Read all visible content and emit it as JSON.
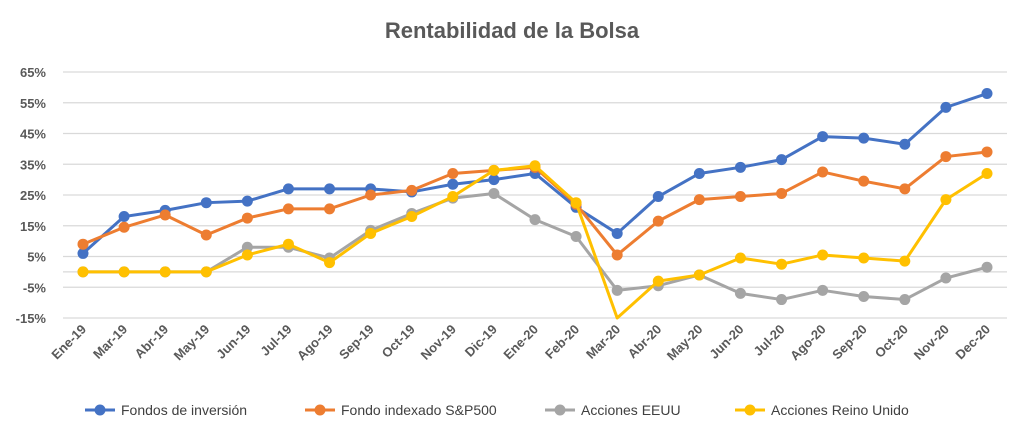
{
  "chart_data": {
    "type": "line",
    "title": "Rentabilidad de la Bolsa",
    "xlabel": "",
    "ylabel": "",
    "ylim": [
      -15,
      65
    ],
    "yticks": [
      65,
      55,
      45,
      35,
      25,
      15,
      5,
      -5,
      -15
    ],
    "ytick_labels": [
      "65%",
      "55%",
      "45%",
      "35%",
      "25%",
      "15%",
      "5%",
      "-5%",
      "-15%"
    ],
    "grid": true,
    "legend_position": "bottom",
    "categories": [
      "Ene-19",
      "Mar-19",
      "Abr-19",
      "May-19",
      "Jun-19",
      "Jul-19",
      "Ago-19",
      "Sep-19",
      "Oct-19",
      "Nov-19",
      "Dic-19",
      "Ene-20",
      "Feb-20",
      "Mar-20",
      "Abr-20",
      "May-20",
      "Jun-20",
      "Jul-20",
      "Ago-20",
      "Sep-20",
      "Oct-20",
      "Nov-20",
      "Dec-20"
    ],
    "series": [
      {
        "name": "Fondos de inversión",
        "color": "#4472C4",
        "values": [
          6,
          18,
          20,
          22.5,
          23,
          27,
          27,
          27,
          26,
          28.5,
          30,
          32,
          21,
          12.5,
          24.5,
          32,
          34,
          36.5,
          44,
          43.5,
          41.5,
          53.5,
          58
        ]
      },
      {
        "name": "Fondo indexado S&P500",
        "color": "#ED7D31",
        "values": [
          9,
          14.5,
          18.5,
          12,
          17.5,
          20.5,
          20.5,
          25,
          26.5,
          32,
          33,
          34,
          22,
          5.5,
          16.5,
          23.5,
          24.5,
          25.5,
          32.5,
          29.5,
          27,
          37.5,
          39
        ]
      },
      {
        "name": "Acciones EEUU",
        "color": "#A5A5A5",
        "values": [
          0,
          0,
          0,
          0,
          8,
          8,
          4.5,
          13.5,
          19,
          24,
          25.5,
          17,
          11.5,
          -6,
          -4.5,
          -1,
          -7,
          -9,
          -6,
          -8,
          -9,
          -2,
          1.5
        ]
      },
      {
        "name": "Acciones Reino Unido",
        "color": "#FFC000",
        "values": [
          0,
          0,
          0,
          0,
          5.5,
          9,
          3,
          12.5,
          18,
          24.5,
          33,
          34.5,
          22.5,
          -15,
          -3,
          -1,
          4.5,
          2.5,
          5.5,
          4.5,
          3.5,
          23.5,
          32
        ]
      }
    ]
  }
}
